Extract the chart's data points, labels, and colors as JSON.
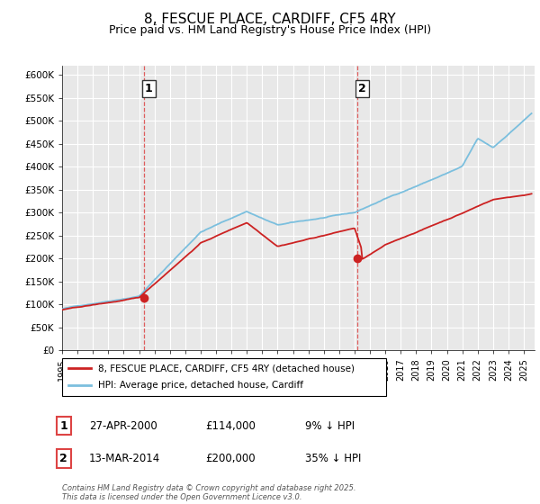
{
  "title": "8, FESCUE PLACE, CARDIFF, CF5 4RY",
  "subtitle": "Price paid vs. HM Land Registry's House Price Index (HPI)",
  "ylim": [
    0,
    620000
  ],
  "xlim_start": 1995.0,
  "xlim_end": 2025.7,
  "sale1_year": 2000.32,
  "sale1_price": 114000,
  "sale1_label": "1",
  "sale2_year": 2014.19,
  "sale2_price": 200000,
  "sale2_label": "2",
  "legend_property": "8, FESCUE PLACE, CARDIFF, CF5 4RY (detached house)",
  "legend_hpi": "HPI: Average price, detached house, Cardiff",
  "annotation1_date": "27-APR-2000",
  "annotation1_price": "£114,000",
  "annotation1_hpi": "9% ↓ HPI",
  "annotation2_date": "13-MAR-2014",
  "annotation2_price": "£200,000",
  "annotation2_hpi": "35% ↓ HPI",
  "copyright_text": "Contains HM Land Registry data © Crown copyright and database right 2025.\nThis data is licensed under the Open Government Licence v3.0.",
  "hpi_color": "#7bbfde",
  "property_color": "#cc2222",
  "vline_color": "#dd4444",
  "background_color": "#e8e8e8",
  "grid_color": "#ffffff",
  "title_fontsize": 11,
  "subtitle_fontsize": 9
}
